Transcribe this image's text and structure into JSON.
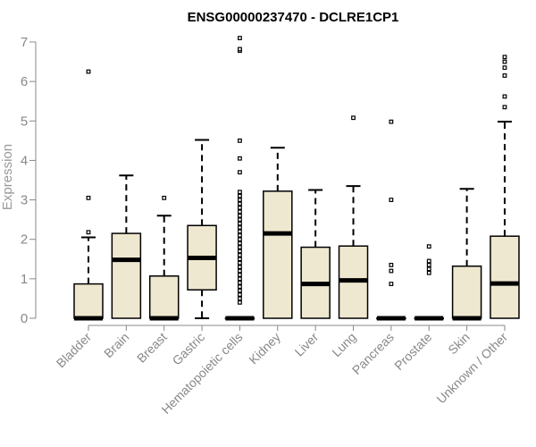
{
  "chart_data": {
    "type": "box",
    "title": "ENSG00000237470 - DCLRE1CP1",
    "xlabel": "",
    "ylabel": "Expression",
    "ylim": [
      0,
      7
    ],
    "yticks": [
      0,
      1,
      2,
      3,
      4,
      5,
      6,
      7
    ],
    "grid": false,
    "colors": {
      "box_fill": "#EEE8D0",
      "stroke": "#000000",
      "axis": "#888888"
    },
    "categories": [
      "Bladder",
      "Brain",
      "Breast",
      "Gastric",
      "Hematopoietic cells",
      "Kidney",
      "Liver",
      "Lung",
      "Pancreas",
      "Prostate",
      "Skin",
      "Unknown / Other"
    ],
    "boxes": [
      {
        "q1": 0,
        "median": 0,
        "q3": 0.87,
        "whisker_low": 0,
        "whisker_high": 2.05,
        "outliers": [
          2.18,
          3.05,
          6.25
        ]
      },
      {
        "q1": 0,
        "median": 1.48,
        "q3": 2.15,
        "whisker_low": 0,
        "whisker_high": 3.62,
        "outliers": []
      },
      {
        "q1": 0,
        "median": 0,
        "q3": 1.07,
        "whisker_low": 0,
        "whisker_high": 2.6,
        "outliers": [
          3.05
        ]
      },
      {
        "q1": 0.72,
        "median": 1.53,
        "q3": 2.35,
        "whisker_low": 0,
        "whisker_high": 4.52,
        "outliers": []
      },
      {
        "q1": 0,
        "median": 0,
        "q3": 0,
        "whisker_low": 0,
        "whisker_high": 0,
        "outliers": [
          0.4,
          0.5,
          0.6,
          0.7,
          0.8,
          0.9,
          1.0,
          1.1,
          1.2,
          1.3,
          1.4,
          1.5,
          1.6,
          1.7,
          1.8,
          1.9,
          2.0,
          2.1,
          2.2,
          2.3,
          2.4,
          2.5,
          2.6,
          2.7,
          2.8,
          2.9,
          3.0,
          3.1,
          3.2,
          3.7,
          4.05,
          4.5,
          6.78,
          6.82,
          7.1
        ]
      },
      {
        "q1": 0,
        "median": 2.15,
        "q3": 3.22,
        "whisker_low": 0,
        "whisker_high": 4.32,
        "outliers": []
      },
      {
        "q1": 0,
        "median": 0.87,
        "q3": 1.8,
        "whisker_low": 0,
        "whisker_high": 3.25,
        "outliers": []
      },
      {
        "q1": 0,
        "median": 0.96,
        "q3": 1.83,
        "whisker_low": 0,
        "whisker_high": 3.35,
        "outliers": [
          5.08
        ]
      },
      {
        "q1": 0,
        "median": 0,
        "q3": 0,
        "whisker_low": 0,
        "whisker_high": 0,
        "outliers": [
          0.87,
          1.2,
          1.35,
          3.0,
          4.98
        ]
      },
      {
        "q1": 0,
        "median": 0,
        "q3": 0,
        "whisker_low": 0,
        "whisker_high": 0,
        "outliers": [
          1.15,
          1.25,
          1.35,
          1.45,
          1.82
        ]
      },
      {
        "q1": 0,
        "median": 0,
        "q3": 1.32,
        "whisker_low": 0,
        "whisker_high": 3.28,
        "outliers": []
      },
      {
        "q1": 0,
        "median": 0.88,
        "q3": 2.08,
        "whisker_low": 0,
        "whisker_high": 4.98,
        "outliers": [
          5.35,
          5.62,
          6.15,
          6.35,
          6.5,
          6.62
        ]
      }
    ]
  }
}
